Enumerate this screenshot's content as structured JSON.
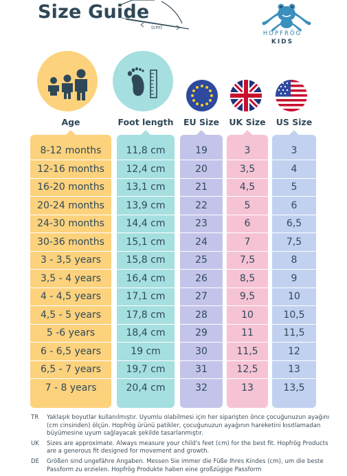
{
  "title": "Size Guide",
  "sketch_label": "(cm)",
  "logo": {
    "word": "HOPFRÖG",
    "kids": "KIDS"
  },
  "headers": {
    "age": "Age",
    "foot": "Foot length",
    "eu": "EU Size",
    "uk": "UK Size",
    "us": "US Size"
  },
  "colors": {
    "age": "#fcd27d",
    "foot": "#a5dfe0",
    "eu": "#c4c4ea",
    "uk": "#f6c3d4",
    "us": "#c2d1f0",
    "text": "#2f4858"
  },
  "rows": [
    {
      "age": "8-12 months",
      "foot": "11,8 cm",
      "eu": "19",
      "uk": "3",
      "us": "3"
    },
    {
      "age": "12-16 months",
      "foot": "12,4 cm",
      "eu": "20",
      "uk": "3,5",
      "us": "4"
    },
    {
      "age": "16-20 months",
      "foot": "13,1 cm",
      "eu": "21",
      "uk": "4,5",
      "us": "5"
    },
    {
      "age": "20-24 months",
      "foot": "13,9 cm",
      "eu": "22",
      "uk": "5",
      "us": "6"
    },
    {
      "age": "24-30 months",
      "foot": "14,4 cm",
      "eu": "23",
      "uk": "6",
      "us": "6,5"
    },
    {
      "age": "30-36 months",
      "foot": "15,1 cm",
      "eu": "24",
      "uk": "7",
      "us": "7,5"
    },
    {
      "age": "3 - 3,5 years",
      "foot": "15,8 cm",
      "eu": "25",
      "uk": "7,5",
      "us": "8"
    },
    {
      "age": "3,5 - 4 years",
      "foot": "16,4 cm",
      "eu": "26",
      "uk": "8,5",
      "us": "9"
    },
    {
      "age": "4 - 4,5 years",
      "foot": "17,1 cm",
      "eu": "27",
      "uk": "9,5",
      "us": "10"
    },
    {
      "age": "4,5 - 5 years",
      "foot": "17,8 cm",
      "eu": "28",
      "uk": "10",
      "us": "10,5"
    },
    {
      "age": "5 -6 years",
      "foot": "18,4 cm",
      "eu": "29",
      "uk": "11",
      "us": "11,5"
    },
    {
      "age": "6 - 6,5 years",
      "foot": "19 cm",
      "eu": "30",
      "uk": "11,5",
      "us": "12"
    },
    {
      "age": "6,5 - 7 years",
      "foot": "19,7 cm",
      "eu": "31",
      "uk": "12,5",
      "us": "13"
    },
    {
      "age": "7 - 8 years",
      "foot": "20,4 cm",
      "eu": "32",
      "uk": "13",
      "us": "13,5"
    }
  ],
  "notes": [
    {
      "code": "TR",
      "text": "Yaklaşık boyutlar kullanılmıştır. Uyumlu olabilmesi için her siparişten önce çocuğunuzun ayağını (cm cinsinden) ölçün. Hopfrög ürünü patikler, çocuğunuzun ayağının hareketini kısıtlamadan büyümesine uyum sağlayacak şekilde tasarlanmıştır."
    },
    {
      "code": "UK",
      "text": "Sizes are approximate. Always measure your child's feet (cm) for the best fit. Hopfrög Products are a generous fit designed for movement and growth."
    },
    {
      "code": "DE",
      "text": "Größen sind ungefähre Angaben. Messen Sie immer die Füße Ihres Kindes (cm), um die beste Passform zu erzielen. Hopfrög Produkte haben eine großzügige Passform"
    }
  ]
}
